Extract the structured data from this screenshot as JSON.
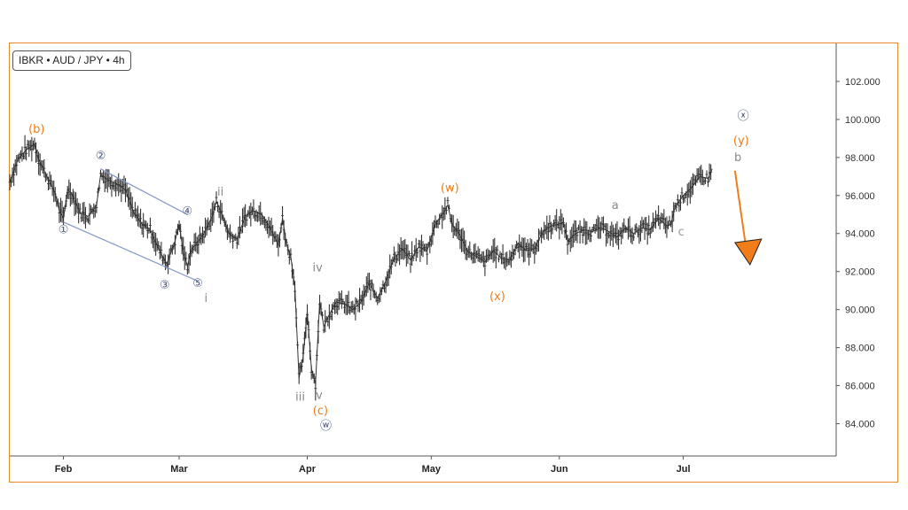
{
  "header": {
    "symbol_tag": "IBKR • AUD / JPY • 4h"
  },
  "chart_data": {
    "type": "line",
    "title": "IBKR • AUD / JPY • 4h",
    "x_axis": {
      "ticks": [
        {
          "label": "Feb",
          "day": 32
        },
        {
          "label": "Mar",
          "day": 60
        },
        {
          "label": "Apr",
          "day": 91
        },
        {
          "label": "May",
          "day": 121
        },
        {
          "label": "Jun",
          "day": 152
        },
        {
          "label": "Jul",
          "day": 182
        }
      ],
      "range": [
        19,
        219
      ]
    },
    "y_axis": {
      "side": "right",
      "ticks": [
        "84.000",
        "86.000",
        "88.000",
        "90.000",
        "92.000",
        "94.000",
        "96.000",
        "98.000",
        "100.000",
        "102.000"
      ],
      "range": [
        82.3,
        104.0
      ]
    },
    "grid": false,
    "series": [
      {
        "color": "#333333",
        "points": [
          [
            19,
            96.7
          ],
          [
            21,
            97.9
          ],
          [
            23,
            98.4
          ],
          [
            25,
            98.7
          ],
          [
            26,
            97.9
          ],
          [
            28,
            97.0
          ],
          [
            30,
            96.1
          ],
          [
            31,
            95.2
          ],
          [
            32,
            94.8
          ],
          [
            33,
            96.3
          ],
          [
            34,
            96.1
          ],
          [
            36,
            95.1
          ],
          [
            38,
            94.9
          ],
          [
            40,
            95.5
          ],
          [
            41,
            97.1
          ],
          [
            43,
            96.8
          ],
          [
            45,
            96.6
          ],
          [
            47,
            96.3
          ],
          [
            49,
            95.1
          ],
          [
            51,
            94.5
          ],
          [
            53,
            94.2
          ],
          [
            55,
            93.2
          ],
          [
            57,
            92.4
          ],
          [
            59,
            93.6
          ],
          [
            60,
            94.5
          ],
          [
            61,
            93.0
          ],
          [
            62,
            92.3
          ],
          [
            63,
            93.2
          ],
          [
            64,
            93.4
          ],
          [
            66,
            94.0
          ],
          [
            68,
            94.9
          ],
          [
            69,
            95.7
          ],
          [
            70,
            95.2
          ],
          [
            72,
            94.0
          ],
          [
            74,
            93.7
          ],
          [
            76,
            94.9
          ],
          [
            78,
            95.2
          ],
          [
            80,
            95.0
          ],
          [
            82,
            94.3
          ],
          [
            84,
            93.4
          ],
          [
            85,
            94.8
          ],
          [
            86,
            93.4
          ],
          [
            87,
            92.8
          ],
          [
            88,
            91.2
          ],
          [
            89,
            86.4
          ],
          [
            90,
            87.5
          ],
          [
            91,
            89.9
          ],
          [
            92,
            86.9
          ],
          [
            93,
            86.1
          ],
          [
            94,
            90.4
          ],
          [
            95,
            89.1
          ],
          [
            96,
            89.6
          ],
          [
            98,
            90.4
          ],
          [
            100,
            90.3
          ],
          [
            102,
            90.0
          ],
          [
            104,
            90.4
          ],
          [
            106,
            91.4
          ],
          [
            108,
            90.6
          ],
          [
            110,
            91.5
          ],
          [
            112,
            92.7
          ],
          [
            114,
            93.2
          ],
          [
            116,
            92.6
          ],
          [
            118,
            93.3
          ],
          [
            120,
            93.1
          ],
          [
            122,
            94.5
          ],
          [
            124,
            95.1
          ],
          [
            125,
            95.5
          ],
          [
            126,
            94.5
          ],
          [
            128,
            93.9
          ],
          [
            130,
            93.0
          ],
          [
            132,
            92.8
          ],
          [
            134,
            92.5
          ],
          [
            136,
            93.1
          ],
          [
            138,
            92.7
          ],
          [
            140,
            92.6
          ],
          [
            142,
            93.5
          ],
          [
            144,
            93.1
          ],
          [
            146,
            93.2
          ],
          [
            148,
            94.1
          ],
          [
            150,
            94.4
          ],
          [
            152,
            94.5
          ],
          [
            153,
            94.6
          ],
          [
            154,
            93.6
          ],
          [
            156,
            94.0
          ],
          [
            158,
            94.2
          ],
          [
            160,
            94.1
          ],
          [
            162,
            94.3
          ],
          [
            164,
            94.1
          ],
          [
            166,
            93.8
          ],
          [
            168,
            94.3
          ],
          [
            170,
            94.0
          ],
          [
            172,
            94.3
          ],
          [
            174,
            94.2
          ],
          [
            176,
            94.8
          ],
          [
            178,
            94.4
          ],
          [
            179,
            94.5
          ],
          [
            180,
            95.4
          ],
          [
            182,
            96.0
          ],
          [
            184,
            96.4
          ],
          [
            186,
            97.0
          ],
          [
            188,
            96.9
          ],
          [
            189,
            97.4
          ]
        ]
      }
    ],
    "annotations": [
      {
        "text": "(b)",
        "color": "#f07c1a",
        "day": 25.5,
        "price": 99.3
      },
      {
        "text": "①",
        "color": "#4b5a7e",
        "day": 32,
        "price": 94.0
      },
      {
        "text": "②",
        "color": "#4b5a7e",
        "day": 41,
        "price": 97.9
      },
      {
        "text": "③",
        "color": "#4b5a7e",
        "day": 56.5,
        "price": 91.1
      },
      {
        "text": "④",
        "color": "#4b5a7e",
        "day": 62,
        "price": 95.0
      },
      {
        "text": "⑤",
        "color": "#4b5a7e",
        "day": 64.5,
        "price": 91.2
      },
      {
        "text": "i",
        "color": "#888888",
        "day": 66.5,
        "price": 90.4
      },
      {
        "text": "ii",
        "color": "#888888",
        "day": 70,
        "price": 96.0
      },
      {
        "text": "iii",
        "color": "#888888",
        "day": 89.3,
        "price": 85.2
      },
      {
        "text": "iv",
        "color": "#888888",
        "day": 93.5,
        "price": 92.0
      },
      {
        "text": "v",
        "color": "#888888",
        "day": 93.9,
        "price": 85.3
      },
      {
        "text": "(c)",
        "color": "#f07c1a",
        "day": 94.2,
        "price": 84.5
      },
      {
        "text": "ⓦ",
        "color": "#2e3f70",
        "day": 95.5,
        "price": 83.7
      },
      {
        "text": "(w)",
        "color": "#f07c1a",
        "day": 125.5,
        "price": 96.2
      },
      {
        "text": "(x)",
        "color": "#f07c1a",
        "day": 137,
        "price": 90.5
      },
      {
        "text": "a",
        "color": "#888888",
        "day": 165.5,
        "price": 95.3
      },
      {
        "text": "c",
        "color": "#999999",
        "day": 181.5,
        "price": 93.9
      },
      {
        "text": "ⓧ",
        "color": "#2e3f70",
        "day": 196.5,
        "price": 100.0
      },
      {
        "text": "(y)",
        "color": "#f07c1a",
        "day": 196,
        "price": 98.7
      },
      {
        "text": "b",
        "color": "#888888",
        "day": 195.2,
        "price": 97.8
      }
    ],
    "channel_lines": [
      {
        "from": [
          41,
          97.4
        ],
        "to": [
          62,
          95.0
        ],
        "color": "#8a9bc8"
      },
      {
        "from": [
          32,
          94.6
        ],
        "to": [
          64.5,
          91.5
        ],
        "color": "#8a9bc8"
      }
    ],
    "projection": {
      "from": [
        194.5,
        97.3
      ],
      "to": [
        197.5,
        92.5
      ],
      "color": "#f07c1a"
    }
  }
}
